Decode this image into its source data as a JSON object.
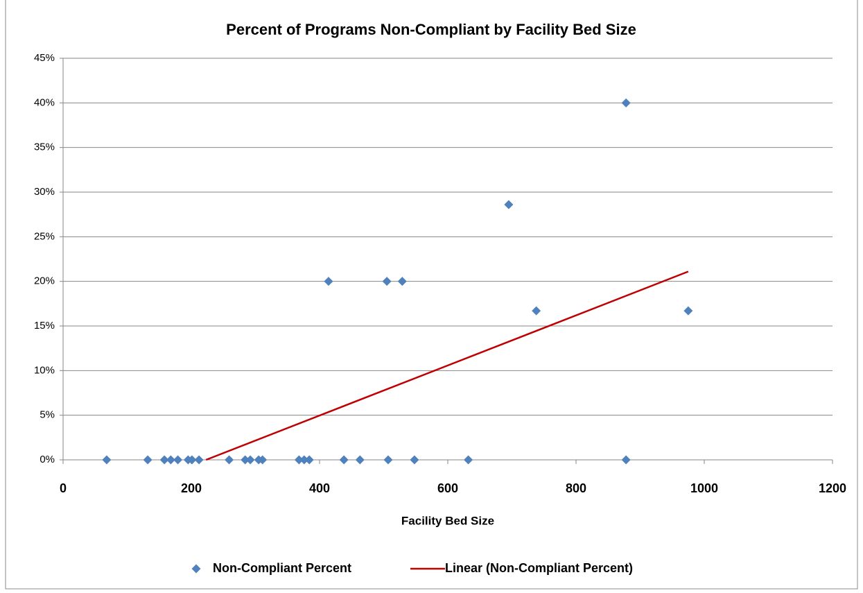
{
  "chart_data": {
    "type": "scatter",
    "title": "Percent of Programs Non-Compliant by Facility Bed Size",
    "xlabel": "Facility Bed Size",
    "xlim": [
      0,
      1200
    ],
    "xticks": [
      0,
      200,
      400,
      600,
      800,
      1000,
      1200
    ],
    "ylim": [
      0,
      45
    ],
    "yticks": [
      {
        "value": 0,
        "label": "0%"
      },
      {
        "value": 5,
        "label": "5%"
      },
      {
        "value": 10,
        "label": "10%"
      },
      {
        "value": 15,
        "label": "15%"
      },
      {
        "value": 20,
        "label": "20%"
      },
      {
        "value": 25,
        "label": "25%"
      },
      {
        "value": 30,
        "label": "30%"
      },
      {
        "value": 35,
        "label": "35%"
      },
      {
        "value": 40,
        "label": "40%"
      },
      {
        "value": 45,
        "label": "45%"
      }
    ],
    "grid": true,
    "legend": "bottom",
    "series": [
      {
        "name": "Non-Compliant Percent",
        "type": "scatter",
        "color": "#4f81bd",
        "x": [
          68,
          132,
          158,
          168,
          179,
          195,
          201,
          212,
          259,
          284,
          292,
          305,
          311,
          368,
          376,
          384,
          438,
          463,
          507,
          548,
          632,
          878,
          414,
          505,
          529,
          695,
          738,
          878,
          975
        ],
        "values": [
          0,
          0,
          0,
          0,
          0,
          0,
          0,
          0,
          0,
          0,
          0,
          0,
          0,
          0,
          0,
          0,
          0,
          0,
          0,
          0,
          0,
          0,
          20,
          20,
          20,
          28.6,
          16.7,
          40,
          16.7
        ]
      },
      {
        "name": "Linear (Non-Compliant Percent)",
        "type": "line",
        "color": "#c00000",
        "x": [
          223,
          975
        ],
        "values": [
          0,
          21.1
        ]
      }
    ]
  }
}
